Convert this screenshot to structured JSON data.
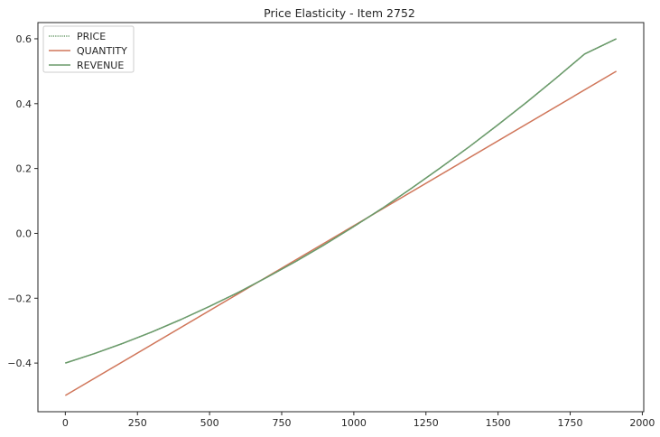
{
  "chart_data": {
    "type": "line",
    "title": "Price Elasticity - Item 2752",
    "xlabel": "",
    "ylabel": "",
    "xlim": [
      -95,
      2005
    ],
    "ylim": [
      -0.55,
      0.65
    ],
    "xticks": [
      0,
      250,
      500,
      750,
      1000,
      1250,
      1500,
      1750,
      2000
    ],
    "xtick_labels": [
      "0",
      "250",
      "500",
      "750",
      "1000",
      "1250",
      "1500",
      "1750",
      "2000"
    ],
    "yticks": [
      -0.4,
      -0.2,
      0.0,
      0.2,
      0.4,
      0.6
    ],
    "ytick_labels": [
      "−0.4",
      "−0.2",
      "0.0",
      "0.2",
      "0.4",
      "0.6"
    ],
    "grid": false,
    "legend_position": "top-left",
    "series": [
      {
        "name": "PRICE",
        "color": "#6a9a6a",
        "style": "dotted",
        "x": [
          0,
          100,
          200,
          300,
          400,
          500,
          600,
          700,
          800,
          900,
          1000,
          1100,
          1200,
          1300,
          1400,
          1500,
          1600,
          1700,
          1800,
          1910
        ],
        "values": [
          -0.4,
          -0.371,
          -0.339,
          -0.304,
          -0.266,
          -0.225,
          -0.182,
          -0.135,
          -0.086,
          -0.034,
          0.021,
          0.078,
          0.139,
          0.202,
          0.267,
          0.335,
          0.405,
          0.478,
          0.553,
          0.6
        ]
      },
      {
        "name": "QUANTITY",
        "color": "#d0765a",
        "style": "solid",
        "x": [
          0,
          1910
        ],
        "values": [
          -0.5,
          0.5
        ]
      },
      {
        "name": "REVENUE",
        "color": "#6a9a6a",
        "style": "solid",
        "x": [
          0,
          100,
          200,
          300,
          400,
          500,
          600,
          700,
          800,
          900,
          1000,
          1100,
          1200,
          1300,
          1400,
          1500,
          1600,
          1700,
          1800,
          1910
        ],
        "values": [
          -0.4,
          -0.371,
          -0.339,
          -0.304,
          -0.266,
          -0.225,
          -0.182,
          -0.135,
          -0.086,
          -0.034,
          0.021,
          0.078,
          0.139,
          0.202,
          0.267,
          0.335,
          0.405,
          0.478,
          0.553,
          0.6
        ]
      }
    ]
  }
}
